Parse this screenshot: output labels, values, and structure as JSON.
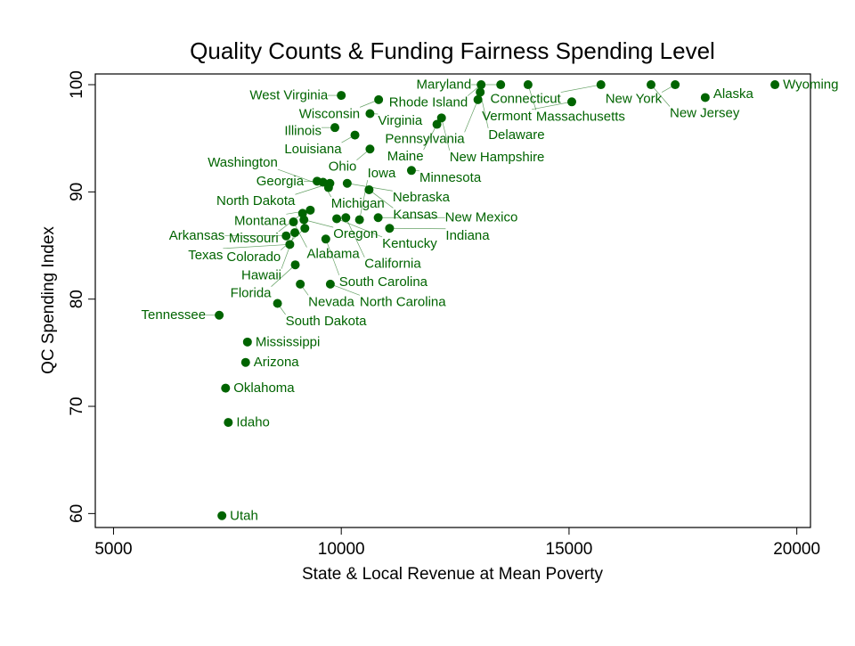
{
  "chart_data": {
    "type": "scatter",
    "title": "Quality Counts & Funding Fairness Spending Level",
    "xlabel": "State & Local Revenue at Mean Poverty",
    "ylabel": "QC Spending Index",
    "xlim": [
      4600,
      20300
    ],
    "ylim": [
      58.7,
      101
    ],
    "xticks": [
      5000,
      10000,
      15000,
      20000
    ],
    "yticks": [
      60,
      70,
      80,
      90,
      100
    ],
    "grid": false,
    "colors": {
      "marker": "#006400",
      "label": "#006400",
      "axis": "#000000"
    },
    "points": [
      {
        "label": "Wyoming",
        "x": 19520,
        "y": 100
      },
      {
        "label": "New York",
        "x": 17330,
        "y": 100
      },
      {
        "label": "New Jersey",
        "x": 16800,
        "y": 100
      },
      {
        "label": "Connecticut",
        "x": 15700,
        "y": 100
      },
      {
        "label": "Massachusetts",
        "x": 14100,
        "y": 100
      },
      {
        "label": "Maryland",
        "x": 13500,
        "y": 100
      },
      {
        "label": "Rhode Island",
        "x": 13070,
        "y": 100
      },
      {
        "label": "Delaware",
        "x": 13050,
        "y": 99.3
      },
      {
        "label": "Pennsylvania",
        "x": 13000,
        "y": 98.6
      },
      {
        "label": "Vermont",
        "x": 15060,
        "y": 98.4
      },
      {
        "label": "Alaska",
        "x": 17990,
        "y": 98.8
      },
      {
        "label": "West Virginia",
        "x": 10000,
        "y": 99
      },
      {
        "label": "Wisconsin",
        "x": 10820,
        "y": 98.6
      },
      {
        "label": "Virginia",
        "x": 10630,
        "y": 97.3
      },
      {
        "label": "New Hampshire",
        "x": 12200,
        "y": 96.9
      },
      {
        "label": "Maine",
        "x": 12100,
        "y": 96.3
      },
      {
        "label": "Illinois",
        "x": 9860,
        "y": 96
      },
      {
        "label": "Louisiana",
        "x": 10300,
        "y": 95.3
      },
      {
        "label": "Ohio",
        "x": 10630,
        "y": 94
      },
      {
        "label": "Minnesota",
        "x": 11540,
        "y": 92
      },
      {
        "label": "Georgia",
        "x": 9470,
        "y": 91
      },
      {
        "label": "Michigan",
        "x": 9600,
        "y": 90.9
      },
      {
        "label": "North Dakota",
        "x": 9750,
        "y": 90.8
      },
      {
        "label": "Nebraska",
        "x": 10130,
        "y": 90.8
      },
      {
        "label": "Washington",
        "x": 9720,
        "y": 90.4
      },
      {
        "label": "Kansas",
        "x": 10610,
        "y": 90.2
      },
      {
        "label": "Montana",
        "x": 9320,
        "y": 88.3
      },
      {
        "label": "Missouri",
        "x": 9150,
        "y": 88
      },
      {
        "label": "Oregon",
        "x": 9180,
        "y": 87.4
      },
      {
        "label": "Alabama",
        "x": 8950,
        "y": 87.2
      },
      {
        "label": "Kentucky",
        "x": 9900,
        "y": 87.5
      },
      {
        "label": "California",
        "x": 10100,
        "y": 87.6
      },
      {
        "label": "Iowa",
        "x": 10400,
        "y": 87.4
      },
      {
        "label": "New Mexico",
        "x": 10810,
        "y": 87.6
      },
      {
        "label": "Colorado",
        "x": 9200,
        "y": 86.6
      },
      {
        "label": "Hawaii",
        "x": 8980,
        "y": 86.2
      },
      {
        "label": "Indiana",
        "x": 11060,
        "y": 86.6
      },
      {
        "label": "Arkansas",
        "x": 8790,
        "y": 85.9
      },
      {
        "label": "South Carolina",
        "x": 9660,
        "y": 85.6
      },
      {
        "label": "Texas",
        "x": 8870,
        "y": 85.1
      },
      {
        "label": "Florida",
        "x": 8990,
        "y": 83.2
      },
      {
        "label": "Nevada",
        "x": 9100,
        "y": 81.4
      },
      {
        "label": "North Carolina",
        "x": 9760,
        "y": 81.4
      },
      {
        "label": "South Dakota",
        "x": 8600,
        "y": 79.6
      },
      {
        "label": "Tennessee",
        "x": 7320,
        "y": 78.5
      },
      {
        "label": "Mississippi",
        "x": 7940,
        "y": 76
      },
      {
        "label": "Arizona",
        "x": 7900,
        "y": 74.1
      },
      {
        "label": "Oklahoma",
        "x": 7460,
        "y": 71.7
      },
      {
        "label": "Idaho",
        "x": 7520,
        "y": 68.5
      },
      {
        "label": "Utah",
        "x": 7380,
        "y": 59.8
      }
    ]
  }
}
